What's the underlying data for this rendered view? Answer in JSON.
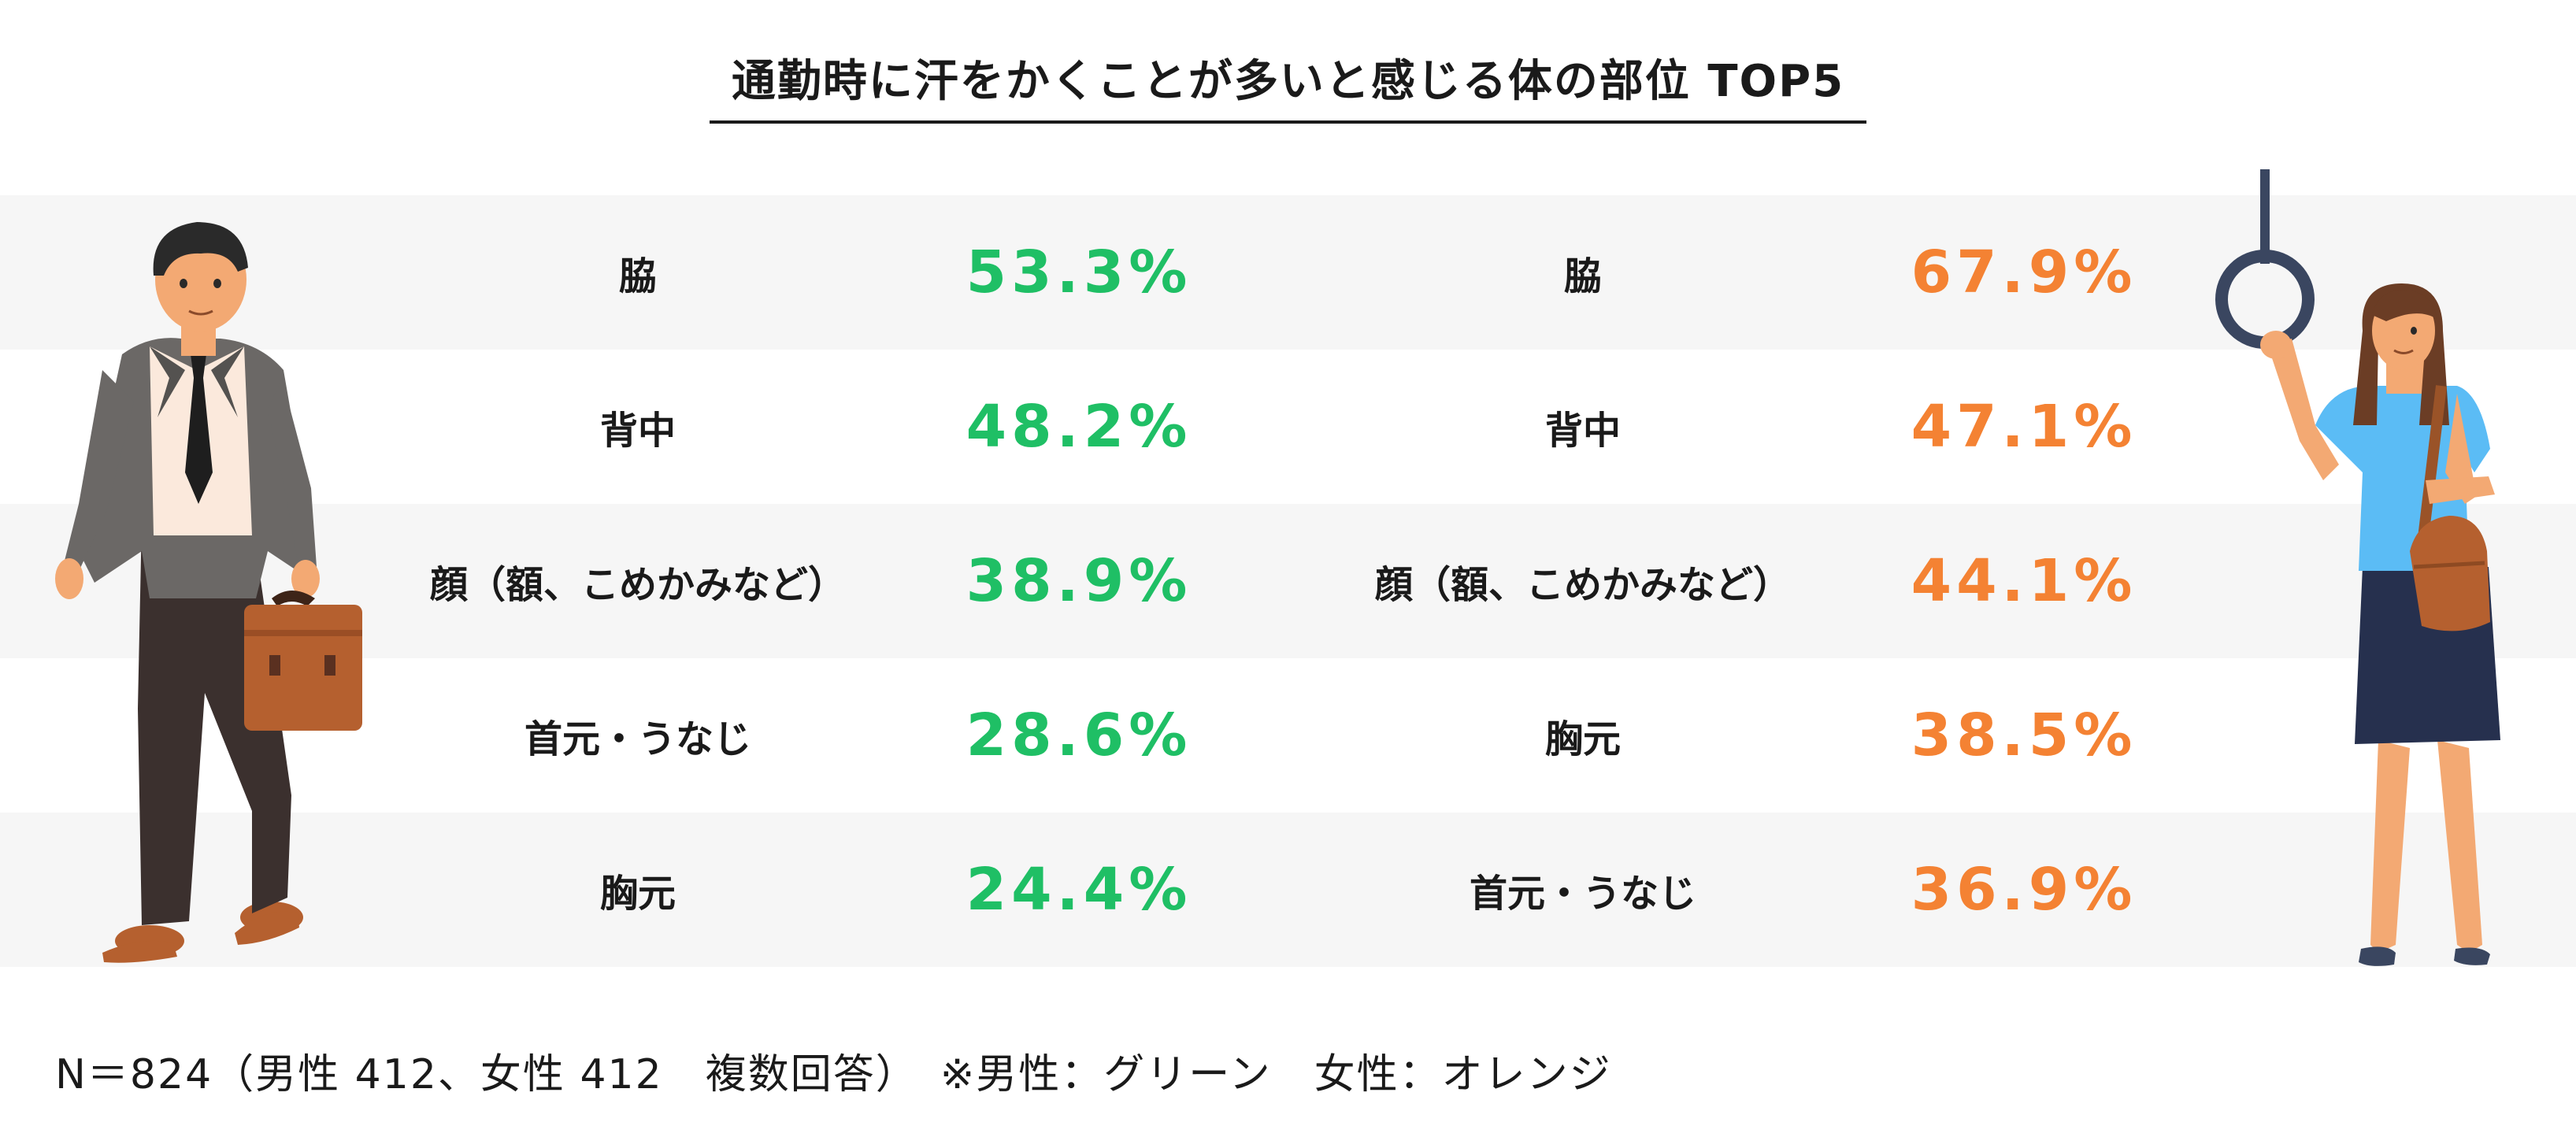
{
  "title": "通勤時に汗をかくことが多いと感じる体の部位 TOP5",
  "colors": {
    "male": "#1fbf65",
    "female": "#f48233",
    "row_shade": "#f6f6f6"
  },
  "chart_data": {
    "type": "table",
    "title": "通勤時に汗をかくことが多いと感じる体の部位 TOP5",
    "male": [
      {
        "rank": 1,
        "label": "脇",
        "value": "53.3%"
      },
      {
        "rank": 2,
        "label": "背中",
        "value": "48.2%"
      },
      {
        "rank": 3,
        "label": "顔（額、こめかみなど）",
        "value": "38.9%"
      },
      {
        "rank": 4,
        "label": "首元・うなじ",
        "value": "28.6%"
      },
      {
        "rank": 5,
        "label": "胸元",
        "value": "24.4%"
      }
    ],
    "female": [
      {
        "rank": 1,
        "label": "脇",
        "value": "67.9%"
      },
      {
        "rank": 2,
        "label": "背中",
        "value": "47.1%"
      },
      {
        "rank": 3,
        "label": "顔（額、こめかみなど）",
        "value": "44.1%"
      },
      {
        "rank": 4,
        "label": "胸元",
        "value": "38.5%"
      },
      {
        "rank": 5,
        "label": "首元・うなじ",
        "value": "36.9%"
      }
    ]
  },
  "footnote": "N＝824（男性 412、女性 412　複数回答）　※男性：グリーン　女性：オレンジ"
}
